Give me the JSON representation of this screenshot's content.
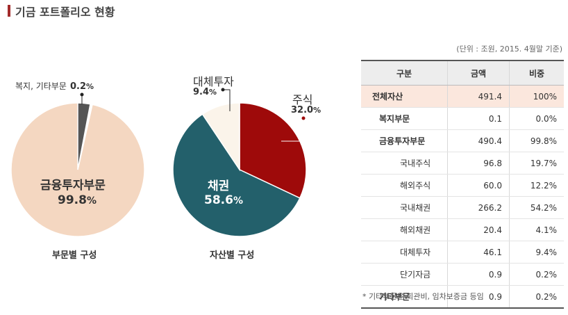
{
  "header": {
    "title": "기금 포트폴리오 현황"
  },
  "unit_note": "(단위 : 조원, 2015. 4월말 기준)",
  "chart_data": [
    {
      "type": "pie",
      "caption": "부문별 구성",
      "slices": [
        {
          "label": "금융투자부문",
          "value": 99.8,
          "display": "99.8",
          "color": "#f4d7c1"
        },
        {
          "label": "복지, 기타부문",
          "value": 0.2,
          "display": "0.2",
          "color": "#555555"
        }
      ]
    },
    {
      "type": "pie",
      "caption": "자산별 구성",
      "slices": [
        {
          "label": "주식",
          "value": 32.0,
          "display": "32.0",
          "color": "#9e0a0a"
        },
        {
          "label": "채권",
          "value": 58.6,
          "display": "58.6",
          "color": "#23606b"
        },
        {
          "label": "대체투자",
          "value": 9.4,
          "display": "9.4",
          "color": "#fbf4ea"
        }
      ]
    }
  ],
  "table": {
    "headers": [
      "구분",
      "금액",
      "비중"
    ],
    "rows": [
      {
        "name": "전체자산",
        "amount": "491.4",
        "pct": "100%",
        "level": 0
      },
      {
        "name": "복지부문",
        "amount": "0.1",
        "pct": "0.0%",
        "level": 1
      },
      {
        "name": "금융투자부문",
        "amount": "490.4",
        "pct": "99.8%",
        "level": 1
      },
      {
        "name": "국내주식",
        "amount": "96.8",
        "pct": "19.7%",
        "level": 2
      },
      {
        "name": "해외주식",
        "amount": "60.0",
        "pct": "12.2%",
        "level": 2
      },
      {
        "name": "국내채권",
        "amount": "266.2",
        "pct": "54.2%",
        "level": 2
      },
      {
        "name": "해외채권",
        "amount": "20.4",
        "pct": "4.1%",
        "level": 2
      },
      {
        "name": "대체투자",
        "amount": "46.1",
        "pct": "9.4%",
        "level": 2
      },
      {
        "name": "단기자금",
        "amount": "0.9",
        "pct": "0.2%",
        "level": 2
      },
      {
        "name": "기타부문",
        "amount": "0.9",
        "pct": "0.2%",
        "level": 1
      }
    ]
  },
  "footnote": "* 기타부문은 회관비, 임차보증금 등임"
}
